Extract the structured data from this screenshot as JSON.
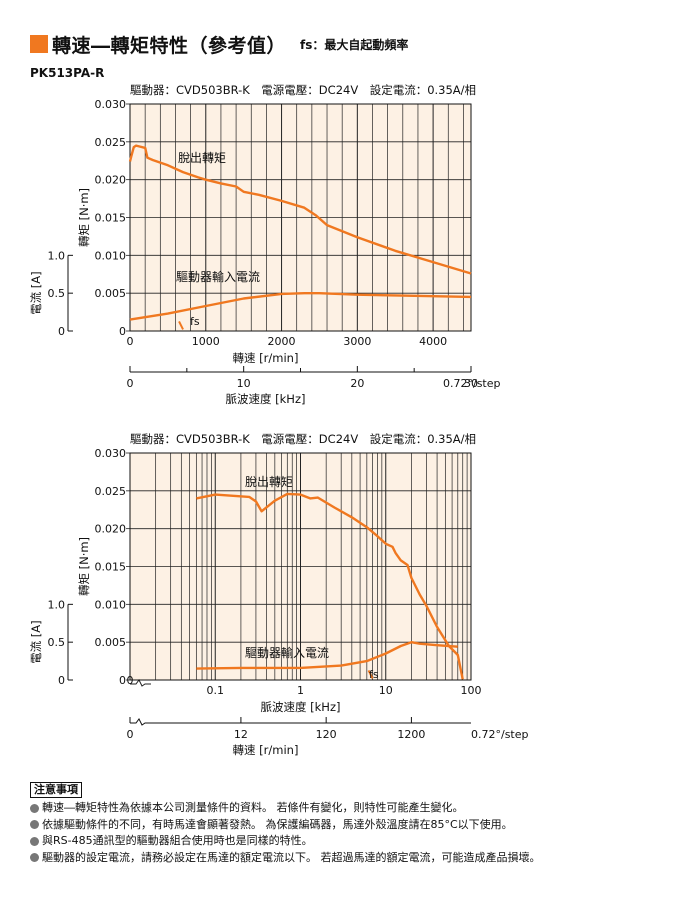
{
  "header": {
    "title": "轉速―轉矩特性（參考值）",
    "fs_note": "fs：最大自起動頻率"
  },
  "model": "PK513PA-R",
  "colors": {
    "accent": "#f07820",
    "panel": "#fdf1e4",
    "grid": "#000000",
    "curve": "#f07820"
  },
  "chart_data": [
    {
      "type": "line",
      "top_label": "驅動器：CVD503BR-K　電源電壓：DC24V　設定電流：0.35A/相",
      "xlabel": "轉速 [r/min]",
      "ylabel": "轉矩 [N·m]",
      "ylabel2": "電流 [A]",
      "xlim": [
        0,
        4500
      ],
      "xticks": [
        "0",
        "1000",
        "2000",
        "3000",
        "4000"
      ],
      "ylim": [
        0,
        0.03
      ],
      "yticks": [
        "0",
        "0.005",
        "0.010",
        "0.015",
        "0.020",
        "0.025",
        "0.030"
      ],
      "y2ticks": [
        "0",
        "0.5",
        "1.0"
      ],
      "secondary_axis": {
        "label": "脈波速度 [kHz]",
        "ticks": [
          "0",
          "10",
          "20",
          "30"
        ],
        "step_label": "0.72°/step"
      },
      "annotations": [
        "脫出轉矩",
        "驅動器輸入電流",
        "fs"
      ],
      "series": [
        {
          "name": "脫出轉矩",
          "x": [
            0,
            20,
            50,
            80,
            120,
            200,
            230,
            300,
            500,
            700,
            900,
            1000,
            1200,
            1400,
            1500,
            1700,
            2000,
            2300,
            2450,
            2600,
            3000,
            3500,
            4000,
            4500
          ],
          "y": [
            0.0224,
            0.0232,
            0.0243,
            0.0245,
            0.0244,
            0.0242,
            0.0229,
            0.0226,
            0.0219,
            0.021,
            0.0203,
            0.02,
            0.0195,
            0.0191,
            0.0184,
            0.018,
            0.0172,
            0.0163,
            0.0153,
            0.014,
            0.0124,
            0.0106,
            0.0091,
            0.0076
          ]
        },
        {
          "name": "驅動器輸入電流",
          "x": [
            0,
            500,
            1000,
            1500,
            2000,
            2300,
            2500,
            3000,
            3500,
            4000,
            4500
          ],
          "y": [
            0.0015,
            0.0023,
            0.0033,
            0.0043,
            0.0049,
            0.005,
            0.005,
            0.0048,
            0.0047,
            0.0046,
            0.0045
          ]
        }
      ],
      "fs": {
        "x": 700
      }
    },
    {
      "type": "line",
      "top_label": "驅動器：CVD503BR-K　電源電壓：DC24V　設定電流：0.35A/相",
      "xlabel": "脈波速度 [kHz]",
      "ylabel": "轉矩 [N·m]",
      "ylabel2": "電流 [A]",
      "xscale": "log",
      "xlim": [
        0.01,
        100
      ],
      "xticks": [
        "0.1",
        "1",
        "10",
        "100"
      ],
      "ylim": [
        0,
        0.03
      ],
      "yticks": [
        "0",
        "0.005",
        "0.010",
        "0.015",
        "0.020",
        "0.025",
        "0.030"
      ],
      "y2ticks": [
        "0",
        "0.5",
        "1.0"
      ],
      "secondary_axis": {
        "label": "轉速 [r/min]",
        "ticks": [
          "0",
          "12",
          "120",
          "1200"
        ],
        "step_label": "0.72°/step"
      },
      "annotations": [
        "脫出轉矩",
        "驅動器輸入電流",
        "fs"
      ],
      "series": [
        {
          "name": "脫出轉矩",
          "x": [
            0.06,
            0.1,
            0.25,
            0.3,
            0.35,
            0.5,
            0.7,
            1.0,
            1.3,
            1.6,
            2.5,
            4,
            6,
            8,
            10,
            12,
            13,
            15,
            18,
            20,
            25,
            30,
            40,
            55,
            70,
            80
          ],
          "y": [
            0.024,
            0.0245,
            0.0242,
            0.0236,
            0.0223,
            0.0237,
            0.0246,
            0.0245,
            0.024,
            0.0241,
            0.0228,
            0.0215,
            0.0202,
            0.019,
            0.018,
            0.0176,
            0.0168,
            0.0158,
            0.0152,
            0.0135,
            0.0113,
            0.0098,
            0.007,
            0.0045,
            0.0033,
            0.0001
          ]
        },
        {
          "name": "驅動器輸入電流",
          "x": [
            0.06,
            0.2,
            0.5,
            1,
            3,
            6,
            10,
            15,
            20,
            25,
            40,
            70
          ],
          "y": [
            0.0015,
            0.0016,
            0.0016,
            0.0016,
            0.0019,
            0.0025,
            0.0035,
            0.0045,
            0.005,
            0.0048,
            0.0046,
            0.0044
          ]
        }
      ],
      "fs": {
        "x": 7
      }
    }
  ],
  "notes": {
    "title": "注意事項",
    "items": [
      "轉速―轉矩特性為依據本公司測量條件的資料。 若條件有變化，則特性可能產生變化。",
      "依據驅動條件的不同，有時馬達會顯著發熱。 為保護編碼器，馬達外殼溫度請在85°C以下使用。",
      "與RS-485通訊型的驅動器組合使用時也是同樣的特性。",
      "驅動器的設定電流，請務必設定在馬達的額定電流以下。 若超過馬達的額定電流，可能造成產品損壞。"
    ]
  }
}
